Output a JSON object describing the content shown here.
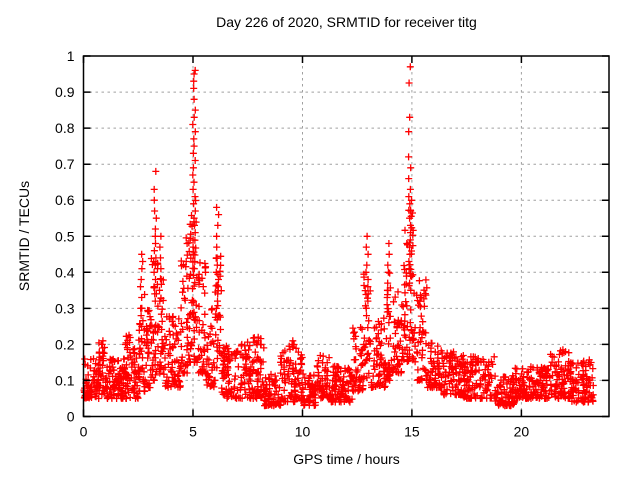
{
  "chart_data": {
    "type": "scatter",
    "title": "Day 226 of 2020, SRMTID for receiver titg",
    "xlabel": "GPS time / hours",
    "ylabel": "SRMTID / TECUs",
    "xlim": [
      0,
      24
    ],
    "ylim": [
      0,
      1
    ],
    "xticks": [
      0,
      5,
      10,
      15,
      20
    ],
    "yticks": [
      0,
      0.1,
      0.2,
      0.3,
      0.4,
      0.5,
      0.6,
      0.7,
      0.8,
      0.9,
      1
    ],
    "grid": true,
    "legend": false,
    "marker": {
      "shape": "plus",
      "size": 7
    },
    "colors": {
      "marker": "#ff0000",
      "grid": "#a0a0a0",
      "axis": "#000000",
      "background": "#ffffff",
      "text": "#000000"
    },
    "seed": 226,
    "bands": [
      [
        0.0,
        0.7,
        0.05,
        0.16,
        70
      ],
      [
        0.7,
        1.0,
        0.06,
        0.22,
        30
      ],
      [
        1.0,
        1.9,
        0.05,
        0.16,
        90
      ],
      [
        1.9,
        2.5,
        0.05,
        0.23,
        60
      ],
      [
        2.5,
        2.8,
        0.07,
        0.34,
        35
      ],
      [
        2.8,
        3.1,
        0.08,
        0.3,
        30
      ],
      [
        3.1,
        3.4,
        0.1,
        0.45,
        35
      ],
      [
        3.4,
        3.65,
        0.1,
        0.4,
        25
      ],
      [
        3.65,
        4.45,
        0.08,
        0.28,
        70
      ],
      [
        4.45,
        4.85,
        0.12,
        0.5,
        45
      ],
      [
        4.85,
        5.2,
        0.15,
        0.6,
        50
      ],
      [
        5.2,
        5.6,
        0.12,
        0.45,
        40
      ],
      [
        5.6,
        6.0,
        0.08,
        0.3,
        35
      ],
      [
        6.0,
        6.3,
        0.1,
        0.45,
        30
      ],
      [
        6.3,
        7.1,
        0.05,
        0.2,
        70
      ],
      [
        7.1,
        8.25,
        0.05,
        0.22,
        100
      ],
      [
        8.25,
        9.0,
        0.03,
        0.12,
        65
      ],
      [
        9.0,
        10.0,
        0.04,
        0.2,
        90
      ],
      [
        10.0,
        10.6,
        0.03,
        0.12,
        55
      ],
      [
        10.6,
        11.3,
        0.05,
        0.17,
        60
      ],
      [
        11.3,
        12.3,
        0.04,
        0.14,
        90
      ],
      [
        12.3,
        12.8,
        0.07,
        0.25,
        45
      ],
      [
        12.8,
        13.1,
        0.1,
        0.4,
        30
      ],
      [
        13.1,
        13.8,
        0.08,
        0.28,
        60
      ],
      [
        13.8,
        14.05,
        0.1,
        0.4,
        25
      ],
      [
        14.05,
        14.6,
        0.12,
        0.35,
        50
      ],
      [
        14.6,
        15.1,
        0.15,
        0.6,
        60
      ],
      [
        15.1,
        15.7,
        0.1,
        0.38,
        50
      ],
      [
        15.7,
        16.4,
        0.08,
        0.22,
        60
      ],
      [
        16.4,
        17.3,
        0.06,
        0.18,
        80
      ],
      [
        17.3,
        18.8,
        0.05,
        0.17,
        120
      ],
      [
        18.8,
        19.7,
        0.03,
        0.12,
        75
      ],
      [
        19.7,
        21.3,
        0.05,
        0.14,
        130
      ],
      [
        21.3,
        22.3,
        0.05,
        0.19,
        85
      ],
      [
        22.3,
        23.3,
        0.04,
        0.16,
        85
      ]
    ],
    "spikes": [
      [
        0.88,
        [
          0.21,
          0.2,
          0.19
        ]
      ],
      [
        2.65,
        [
          0.45,
          0.43,
          0.41,
          0.38,
          0.36,
          0.33,
          0.3,
          0.28
        ]
      ],
      [
        3.27,
        [
          0.68,
          0.63,
          0.6,
          0.57,
          0.55,
          0.52,
          0.5,
          0.48,
          0.46,
          0.44,
          0.42,
          0.4,
          0.38,
          0.36,
          0.34,
          0.32
        ]
      ],
      [
        3.5,
        [
          0.5,
          0.47,
          0.44,
          0.41,
          0.38,
          0.35,
          0.32
        ]
      ],
      [
        5.05,
        [
          0.96,
          0.95,
          0.93,
          0.91,
          0.88,
          0.85,
          0.83,
          0.81,
          0.79,
          0.77,
          0.75,
          0.73,
          0.71,
          0.69,
          0.67,
          0.65,
          0.63,
          0.61,
          0.59,
          0.57,
          0.55,
          0.53,
          0.51,
          0.49,
          0.47,
          0.45,
          0.43,
          0.41
        ]
      ],
      [
        6.12,
        [
          0.58,
          0.56,
          0.53,
          0.5,
          0.47,
          0.44,
          0.42,
          0.4,
          0.38,
          0.36,
          0.34,
          0.32,
          0.3
        ]
      ],
      [
        7.95,
        [
          0.22,
          0.21
        ]
      ],
      [
        9.55,
        [
          0.21,
          0.2
        ]
      ],
      [
        12.95,
        [
          0.5,
          0.47,
          0.45,
          0.42,
          0.4,
          0.38,
          0.36,
          0.34,
          0.32,
          0.3,
          0.28
        ]
      ],
      [
        13.92,
        [
          0.48,
          0.45,
          0.42,
          0.4,
          0.37,
          0.35,
          0.33,
          0.31,
          0.29
        ]
      ],
      [
        14.9,
        [
          0.97,
          0.925,
          0.83,
          0.79,
          0.72,
          0.69,
          0.66,
          0.63,
          0.61,
          0.59,
          0.57,
          0.55,
          0.53,
          0.51,
          0.49,
          0.47,
          0.45,
          0.43,
          0.41,
          0.39,
          0.37,
          0.35
        ]
      ],
      [
        21.9,
        [
          0.185,
          0.175
        ]
      ]
    ]
  }
}
